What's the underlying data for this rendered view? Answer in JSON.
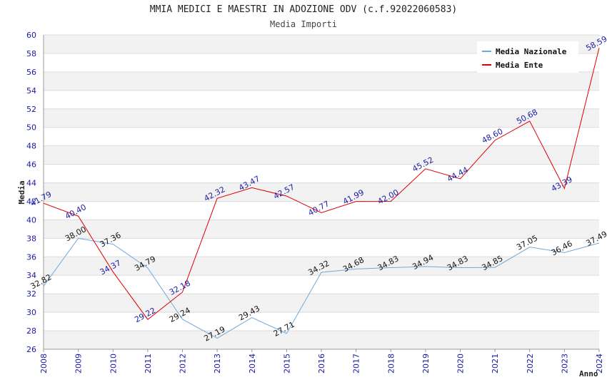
{
  "chart_data": {
    "type": "line",
    "title": "MMIA MEDICI E MAESTRI IN ADOZIONE ODV (c.f.92022060583)",
    "subtitle": "Media Importi",
    "xlabel": "Anno",
    "ylabel": "Media",
    "ylim": [
      26,
      60
    ],
    "ytick_step": 2,
    "grid": true,
    "legend_position": "top-right",
    "x": [
      "2008",
      "2009",
      "2010",
      "2011",
      "2012",
      "2013",
      "2014",
      "2015",
      "2016",
      "2017",
      "2018",
      "2019",
      "2020",
      "2021",
      "2022",
      "2023",
      "2024"
    ],
    "series": [
      {
        "name": "Media Nazionale",
        "color": "#6fa8dc",
        "label_color": "#111111",
        "values": [
          32.82,
          38.0,
          37.36,
          34.79,
          29.24,
          27.19,
          29.43,
          27.71,
          34.32,
          34.68,
          34.83,
          34.94,
          34.83,
          34.85,
          37.05,
          36.46,
          37.49
        ],
        "labels": [
          "32.82",
          "38.00",
          "37.36",
          "34.79",
          "29.24",
          "27.19",
          "29.43",
          "27.71",
          "34.32",
          "34.68",
          "34.83",
          "34.94",
          "34.83",
          "34.85",
          "37.05",
          "36.46",
          "37.49"
        ]
      },
      {
        "name": "Media Ente",
        "color": "#e00000",
        "label_color": "#1a1aa6",
        "values": [
          41.79,
          40.4,
          34.37,
          29.22,
          32.18,
          42.32,
          43.47,
          42.57,
          40.77,
          41.99,
          42.0,
          45.52,
          44.44,
          48.6,
          50.68,
          43.39,
          58.59
        ],
        "labels": [
          "41.79",
          "40.40",
          "34.37",
          "29.22",
          "32.18",
          "42.32",
          "43.47",
          "42.57",
          "40.77",
          "41.99",
          "42.00",
          "45.52",
          "44.44",
          "48.60",
          "50.68",
          "43.39",
          "58.59"
        ]
      }
    ]
  }
}
